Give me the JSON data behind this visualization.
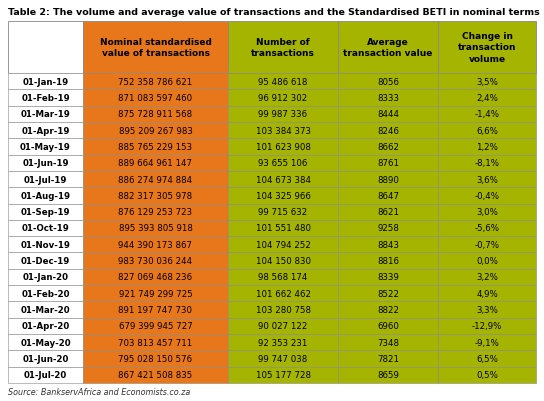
{
  "title": "Table 2: The volume and average value of transactions and the Standardised BETI in nominal terms",
  "col_headers": [
    "Nominal standardised\nvalue of transactions",
    "Number of\ntransactions",
    "Average\ntransaction value",
    "Change in\ntransaction\nvolume"
  ],
  "col_header_colors": [
    "#E8761A",
    "#A4B400",
    "#A4B400",
    "#A4B400"
  ],
  "data_col_colors": [
    "#E8761A",
    "#A4B400",
    "#A4B400",
    "#A4B400"
  ],
  "rows": [
    [
      "01-Jan-19",
      "752 358 786 621",
      "95 486 618",
      "8056",
      "3,5%"
    ],
    [
      "01-Feb-19",
      "871 083 597 460",
      "96 912 302",
      "8333",
      "2,4%"
    ],
    [
      "01-Mar-19",
      "875 728 911 568",
      "99 987 336",
      "8444",
      "-1,4%"
    ],
    [
      "01-Apr-19",
      "895 209 267 983",
      "103 384 373",
      "8246",
      "6,6%"
    ],
    [
      "01-May-19",
      "885 765 229 153",
      "101 623 908",
      "8662",
      "1,2%"
    ],
    [
      "01-Jun-19",
      "889 664 961 147",
      "93 655 106",
      "8761",
      "-8,1%"
    ],
    [
      "01-Jul-19",
      "886 274 974 884",
      "104 673 384",
      "8890",
      "3,6%"
    ],
    [
      "01-Aug-19",
      "882 317 305 978",
      "104 325 966",
      "8647",
      "-0,4%"
    ],
    [
      "01-Sep-19",
      "876 129 253 723",
      "99 715 632",
      "8621",
      "3,0%"
    ],
    [
      "01-Oct-19",
      "895 393 805 918",
      "101 551 480",
      "9258",
      "-5,6%"
    ],
    [
      "01-Nov-19",
      "944 390 173 867",
      "104 794 252",
      "8843",
      "-0,7%"
    ],
    [
      "01-Dec-19",
      "983 730 036 244",
      "104 150 830",
      "8816",
      "0,0%"
    ],
    [
      "01-Jan-20",
      "827 069 468 236",
      "98 568 174",
      "8339",
      "3,2%"
    ],
    [
      "01-Feb-20",
      "921 749 299 725",
      "101 662 462",
      "8522",
      "4,9%"
    ],
    [
      "01-Mar-20",
      "891 197 747 730",
      "103 280 758",
      "8822",
      "3,3%"
    ],
    [
      "01-Apr-20",
      "679 399 945 727",
      "90 027 122",
      "6960",
      "-12,9%"
    ],
    [
      "01-May-20",
      "703 813 457 711",
      "92 353 231",
      "7348",
      "-9,1%"
    ],
    [
      "01-Jun-20",
      "795 028 150 576",
      "99 747 038",
      "7821",
      "6,5%"
    ],
    [
      "01-Jul-20",
      "867 421 508 835",
      "105 177 728",
      "8659",
      "0,5%"
    ]
  ],
  "source_text": "Source: BankservAfrica and Economists.co.za",
  "title_fontsize": 6.8,
  "header_fontsize": 6.5,
  "cell_fontsize": 6.2,
  "source_fontsize": 5.8,
  "border_color": "#888888",
  "text_color_header": "#000000",
  "text_color_data": "#000000"
}
